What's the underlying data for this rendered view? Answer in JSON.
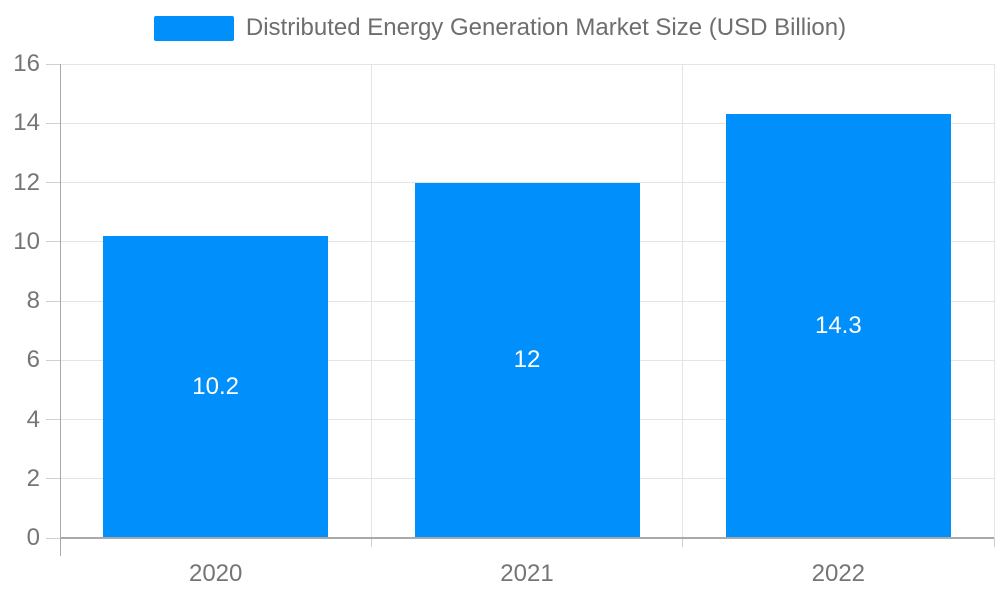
{
  "chart_data": {
    "type": "bar",
    "title": "Distributed Energy Generation Market Size (USD Billion)",
    "legend": {
      "position": "top",
      "label": "Distributed Energy Generation Market Size (USD Billion)"
    },
    "categories": [
      "2020",
      "2021",
      "2022"
    ],
    "series": [
      {
        "name": "Distributed Energy Generation Market Size (USD Billion)",
        "values": [
          10.2,
          12,
          14.3
        ],
        "data_labels": [
          "10.2",
          "12",
          "14.3"
        ]
      }
    ],
    "xlabel": "",
    "ylabel": "",
    "ylim": [
      0,
      16
    ],
    "ytick_step": 2,
    "ytick_labels": [
      "0",
      "2",
      "4",
      "6",
      "8",
      "10",
      "12",
      "14",
      "16"
    ],
    "grid": true
  },
  "colors": {
    "bar": "#008FFB",
    "bar_label": "#FFFFFF",
    "axis_text": "#757575",
    "legend_text": "#6E6E6E",
    "gridline": "#E4E4E4",
    "axis_line": "#A9A9A9",
    "tick": "#CFCFCF"
  }
}
